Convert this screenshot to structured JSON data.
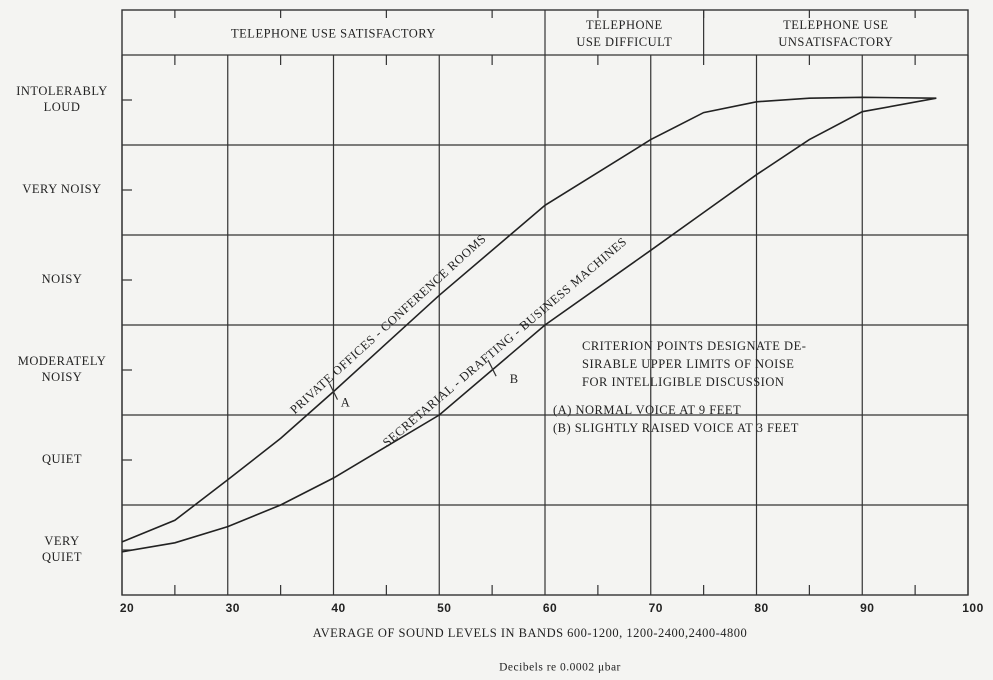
{
  "chart_data": {
    "type": "line",
    "xlabel": "AVERAGE OF SOUND LEVELS IN BANDS 600-1200, 1200-2400,2400-4800",
    "subtitle": "Decibels re 0.0002 μbar",
    "xlim": [
      20,
      100
    ],
    "xticks": [
      20,
      30,
      40,
      50,
      60,
      70,
      80,
      90,
      100
    ],
    "xminor": [
      25,
      35,
      45,
      55,
      65,
      75,
      85,
      95
    ],
    "ylim": [
      0,
      6.5
    ],
    "yticks": [
      {
        "value": 0.5,
        "label": "VERY\nQUIET"
      },
      {
        "value": 1.5,
        "label": "QUIET"
      },
      {
        "value": 2.5,
        "label": "MODERATELY\nNOISY"
      },
      {
        "value": 3.5,
        "label": "NOISY"
      },
      {
        "value": 4.5,
        "label": "VERY NOISY"
      },
      {
        "value": 5.5,
        "label": "INTOLERABLY\nLOUD"
      }
    ],
    "ygrid": [
      1,
      2,
      3,
      4,
      5,
      6
    ],
    "grid": true,
    "zones": [
      {
        "label": "TELEPHONE USE SATISFACTORY",
        "from": 20,
        "to": 60
      },
      {
        "label": "TELEPHONE\nUSE DIFFICULT",
        "from": 60,
        "to": 75
      },
      {
        "label": "TELEPHONE USE\nUNSATISFACTORY",
        "from": 75,
        "to": 100
      }
    ],
    "x": [
      20,
      25,
      30,
      35,
      40,
      50,
      60,
      70,
      75,
      80,
      85,
      90,
      97
    ],
    "series": [
      {
        "name": "PRIVATE OFFICES - CONFERENCE ROOMS",
        "color": "#222222",
        "values": [
          0.59,
          0.83,
          1.28,
          1.74,
          2.26,
          3.33,
          4.33,
          5.06,
          5.36,
          5.48,
          5.52,
          5.53,
          5.52
        ]
      },
      {
        "name": "SECRETARIAL - DRAFTING - BUSINESS MACHINES",
        "color": "#222222",
        "values": [
          0.48,
          0.58,
          0.76,
          1.0,
          1.3,
          2.0,
          3.0,
          3.83,
          4.25,
          4.67,
          5.06,
          5.37,
          5.52
        ]
      }
    ],
    "points": [
      {
        "label": "A",
        "x": 40,
        "y": 2.26
      },
      {
        "label": "B",
        "x": 55,
        "y": 2.52
      }
    ],
    "note": [
      "CRITERION POINTS DESIGNATE DE-",
      "SIRABLE UPPER LIMITS OF NOISE",
      "FOR INTELLIGIBLE DISCUSSION"
    ],
    "point_notes": [
      "(A) NORMAL VOICE AT 9 FEET",
      "(B) SLIGHTLY RAISED VOICE AT 3 FEET"
    ]
  }
}
